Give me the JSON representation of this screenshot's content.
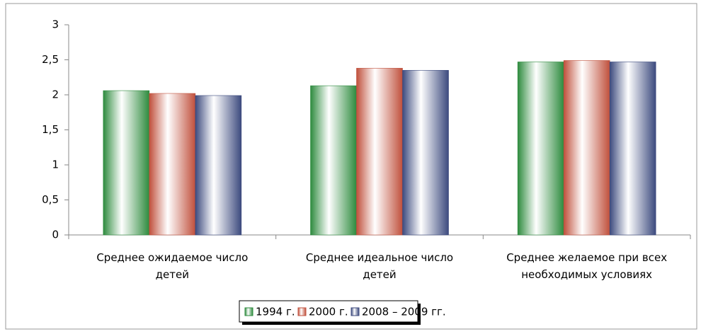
{
  "chart_data": {
    "type": "bar",
    "categories": [
      "Среднее ожидаемое число детей",
      "Среднее идеальное число детей",
      "Среднее желаемое при всех необходимых условиях"
    ],
    "series": [
      {
        "name": "1994 г.",
        "color": "#2e8b3e",
        "values": [
          2.06,
          2.13,
          2.47
        ]
      },
      {
        "name": "2000 г.",
        "color": "#c0503c",
        "values": [
          2.02,
          2.38,
          2.49
        ]
      },
      {
        "name": "2008 – 2009 гг.",
        "color": "#3c4a7e",
        "values": [
          1.99,
          2.35,
          2.47
        ]
      }
    ],
    "ylim": [
      0,
      3
    ],
    "yticks": [
      0,
      {
        "value": 0.5,
        "label": "0,5"
      },
      1,
      {
        "value": 1.5,
        "label": "1,5"
      },
      2,
      {
        "value": 2.5,
        "label": "2,5"
      },
      3
    ],
    "legend": "bottom"
  }
}
